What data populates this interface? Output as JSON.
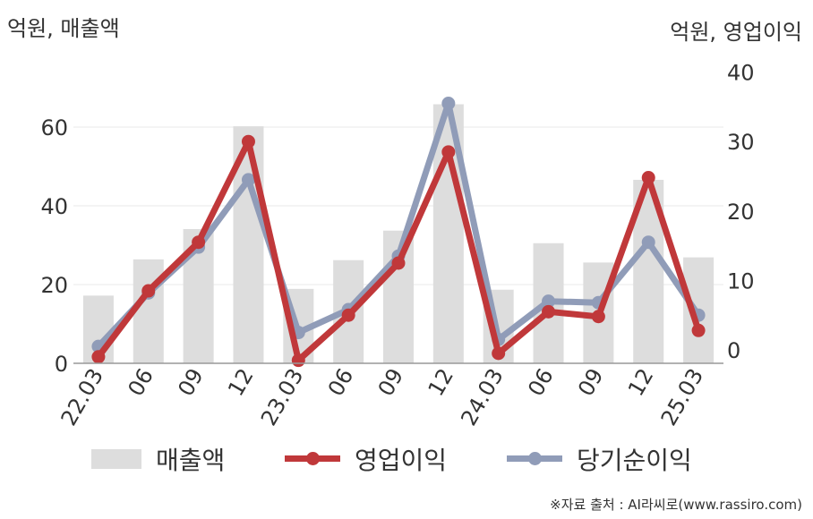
{
  "units": {
    "left": "억원, 매출액",
    "right": "억원, 영업이익"
  },
  "source": "※자료 출처 : AI라씨로(www.rassiro.com)",
  "legend": {
    "sales": "매출액",
    "op": "영업이익",
    "net": "당기순이익"
  },
  "colors": {
    "bar": "#dddddd",
    "op": "#c0383a",
    "net": "#909cb8",
    "axis": "#999999",
    "grid": "#e9e9e9",
    "text": "#333333"
  },
  "chart_data": {
    "type": "bar+line",
    "categories": [
      "22.03",
      "06",
      "09",
      "12",
      "23.03",
      "06",
      "09",
      "12",
      "24.03",
      "06",
      "09",
      "12",
      "25.03"
    ],
    "left_axis": {
      "min": 0,
      "max": 70,
      "ticks": [
        0,
        20,
        40,
        60
      ]
    },
    "right_axis": {
      "min": -2,
      "max": 40,
      "ticks": [
        0,
        10,
        20,
        30,
        40
      ]
    },
    "series": [
      {
        "name": "매출액",
        "kind": "bar",
        "axis": "left",
        "values": [
          17.2,
          26.4,
          34.1,
          60.2,
          18.9,
          26.2,
          33.7,
          65.8,
          18.7,
          30.5,
          25.6,
          46.6,
          26.9
        ]
      },
      {
        "name": "영업이익",
        "kind": "line",
        "axis": "right",
        "values": [
          -1.0,
          8.5,
          15.5,
          30.0,
          -1.5,
          5.0,
          12.5,
          28.5,
          -0.5,
          5.5,
          4.8,
          24.8,
          2.8
        ]
      },
      {
        "name": "당기순이익",
        "kind": "line",
        "axis": "right",
        "values": [
          0.5,
          8.2,
          14.8,
          24.5,
          2.5,
          5.8,
          13.5,
          35.5,
          1.5,
          7.0,
          6.8,
          15.5,
          5.0
        ]
      }
    ]
  }
}
